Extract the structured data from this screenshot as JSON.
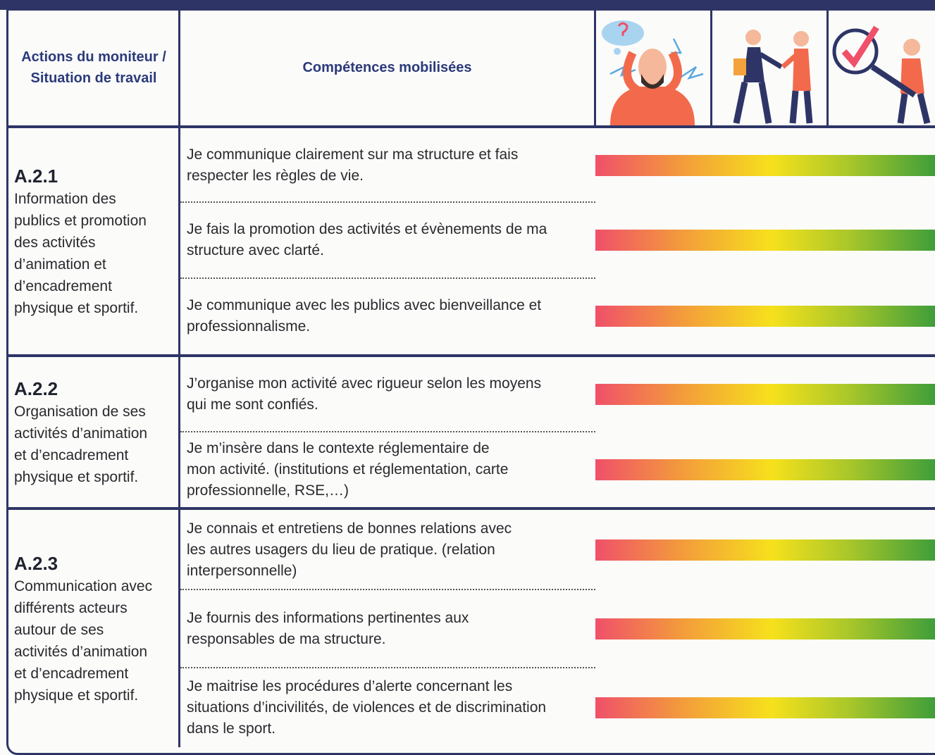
{
  "header": {
    "actions": "Actions du moniteur / Situation de travail",
    "competences": "Compétences mobilisées"
  },
  "sections": [
    {
      "code": "A.2.1",
      "description": [
        "Information des",
        "publics et promotion",
        "des activités",
        "d’animation et",
        "d’encadrement",
        "physique et sportif."
      ],
      "competences": [
        [
          "Je communique clairement sur ma structure et fais",
          "respecter les règles de vie."
        ],
        [
          "Je fais la promotion des activités et évènements de ma",
          "structure avec clarté."
        ],
        [
          "Je communique avec les publics avec bienveillance et",
          "professionnalisme."
        ]
      ]
    },
    {
      "code": "A.2.2",
      "description": [
        "Organisation de ses",
        "activités d’animation",
        "et d’encadrement",
        "physique et sportif."
      ],
      "competences": [
        [
          "J’organise mon activité avec rigueur selon les moyens",
          "qui me sont confiés."
        ],
        [
          "Je m’insère dans le contexte réglementaire de",
          "mon activité. (institutions et réglementation, carte",
          "professionnelle, RSE,…)"
        ]
      ]
    },
    {
      "code": "A.2.3",
      "description": [
        "Communication avec",
        "différents acteurs",
        "autour de ses",
        "activités d’animation",
        "et d’encadrement",
        "physique et sportif."
      ],
      "competences": [
        [
          "Je connais et entretiens de bonnes relations avec",
          "les autres usagers du lieu de pratique. (relation",
          "interpersonnelle)"
        ],
        [
          "Je fournis des informations pertinentes aux",
          "responsables de ma structure."
        ],
        [
          "Je maitrise les procédures d’alerte concernant les",
          "situations d’incivilités, de violences et de discrimination",
          "dans le sport."
        ]
      ]
    }
  ]
}
